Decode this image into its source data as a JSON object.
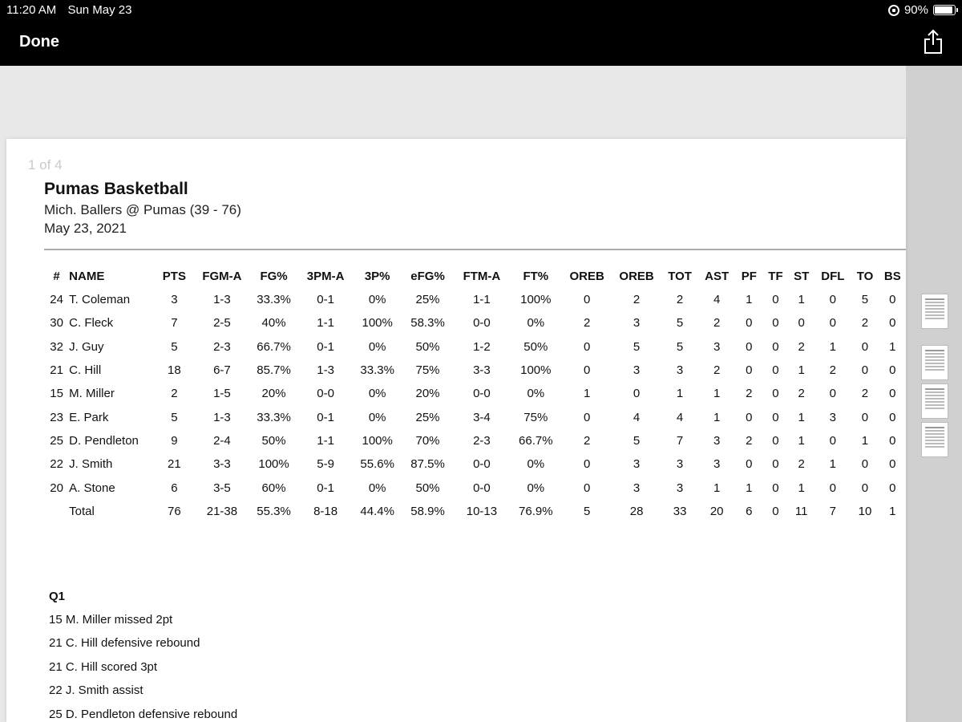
{
  "status_bar": {
    "time": "11:20 AM",
    "date": "Sun May 23",
    "battery": "90%",
    "battery_level": 0.9
  },
  "nav": {
    "done_label": "Done",
    "share_icon": "share-icon"
  },
  "document": {
    "page_indicator": "1 of 4",
    "title": "Pumas Basketball",
    "subtitle": "Mich. Ballers @ Pumas (39 - 76)",
    "date": "May 23, 2021"
  },
  "stats_table": {
    "columns": [
      "#",
      "NAME",
      "PTS",
      "FGM-A",
      "FG%",
      "3PM-A",
      "3P%",
      "eFG%",
      "FTM-A",
      "FT%",
      "OREB",
      "OREB",
      "TOT",
      "AST",
      "PF",
      "TF",
      "ST",
      "DFL",
      "TO",
      "BS"
    ],
    "rows": [
      [
        "24",
        "T. Coleman",
        "3",
        "1-3",
        "33.3%",
        "0-1",
        "0%",
        "25%",
        "1-1",
        "100%",
        "0",
        "2",
        "2",
        "4",
        "1",
        "0",
        "1",
        "0",
        "5",
        "0"
      ],
      [
        "30",
        "C. Fleck",
        "7",
        "2-5",
        "40%",
        "1-1",
        "100%",
        "58.3%",
        "0-0",
        "0%",
        "2",
        "3",
        "5",
        "2",
        "0",
        "0",
        "0",
        "0",
        "2",
        "0"
      ],
      [
        "32",
        "J. Guy",
        "5",
        "2-3",
        "66.7%",
        "0-1",
        "0%",
        "50%",
        "1-2",
        "50%",
        "0",
        "5",
        "5",
        "3",
        "0",
        "0",
        "2",
        "1",
        "0",
        "1"
      ],
      [
        "21",
        "C. Hill",
        "18",
        "6-7",
        "85.7%",
        "1-3",
        "33.3%",
        "75%",
        "3-3",
        "100%",
        "0",
        "3",
        "3",
        "2",
        "0",
        "0",
        "1",
        "2",
        "0",
        "0"
      ],
      [
        "15",
        "M. Miller",
        "2",
        "1-5",
        "20%",
        "0-0",
        "0%",
        "20%",
        "0-0",
        "0%",
        "1",
        "0",
        "1",
        "1",
        "2",
        "0",
        "2",
        "0",
        "2",
        "0"
      ],
      [
        "23",
        "E. Park",
        "5",
        "1-3",
        "33.3%",
        "0-1",
        "0%",
        "25%",
        "3-4",
        "75%",
        "0",
        "4",
        "4",
        "1",
        "0",
        "0",
        "1",
        "3",
        "0",
        "0"
      ],
      [
        "25",
        "D. Pendleton",
        "9",
        "2-4",
        "50%",
        "1-1",
        "100%",
        "70%",
        "2-3",
        "66.7%",
        "2",
        "5",
        "7",
        "3",
        "2",
        "0",
        "1",
        "0",
        "1",
        "0"
      ],
      [
        "22",
        "J. Smith",
        "21",
        "3-3",
        "100%",
        "5-9",
        "55.6%",
        "87.5%",
        "0-0",
        "0%",
        "0",
        "3",
        "3",
        "3",
        "0",
        "0",
        "2",
        "1",
        "0",
        "0"
      ],
      [
        "20",
        "A. Stone",
        "6",
        "3-5",
        "60%",
        "0-1",
        "0%",
        "50%",
        "0-0",
        "0%",
        "0",
        "3",
        "3",
        "1",
        "1",
        "0",
        "1",
        "0",
        "0",
        "0"
      ],
      [
        "",
        "Total",
        "76",
        "21-38",
        "55.3%",
        "8-18",
        "44.4%",
        "58.9%",
        "10-13",
        "76.9%",
        "5",
        "28",
        "33",
        "20",
        "6",
        "0",
        "11",
        "7",
        "10",
        "1"
      ]
    ]
  },
  "play_by_play": {
    "quarter": "Q1",
    "events": [
      "15  M. Miller missed 2pt",
      "21  C. Hill defensive rebound",
      "21  C. Hill scored 3pt",
      "22  J. Smith assist",
      "25  D. Pendleton defensive rebound"
    ]
  }
}
